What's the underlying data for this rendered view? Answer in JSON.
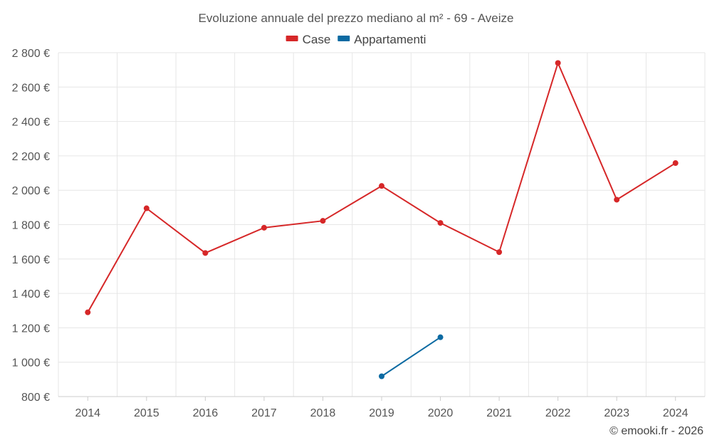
{
  "chart_data": {
    "type": "line",
    "title": "Evoluzione annuale del prezzo mediano al m² - 69 - Aveize",
    "categories": [
      "2014",
      "2015",
      "2016",
      "2017",
      "2018",
      "2019",
      "2020",
      "2021",
      "2022",
      "2023",
      "2024"
    ],
    "series": [
      {
        "name": "Case",
        "color": "#d62728",
        "values": [
          1290,
          1895,
          1635,
          1782,
          1822,
          2025,
          1810,
          1640,
          2740,
          1945,
          2158
        ]
      },
      {
        "name": "Appartamenti",
        "color": "#0b6aa2",
        "values": [
          null,
          null,
          null,
          null,
          null,
          918,
          1145,
          null,
          null,
          null,
          null
        ]
      }
    ],
    "ylim": [
      800,
      2800
    ],
    "yticks": [
      800,
      1000,
      1200,
      1400,
      1600,
      1800,
      2000,
      2200,
      2400,
      2600,
      2800
    ],
    "ytick_labels": [
      "800 €",
      "1 000 €",
      "1 200 €",
      "1 400 €",
      "1 600 €",
      "1 800 €",
      "2 000 €",
      "2 200 €",
      "2 400 €",
      "2 600 €",
      "2 800 €"
    ],
    "xlabel": "",
    "ylabel": "",
    "grid": true,
    "legend_position": "top-center"
  },
  "credit": "© emooki.fr - 2026"
}
